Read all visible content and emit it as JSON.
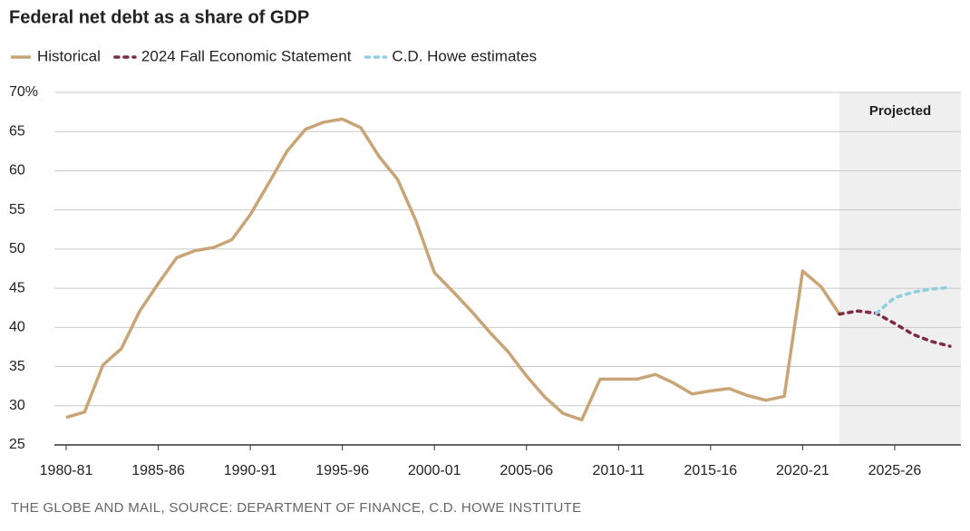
{
  "chart_data": {
    "type": "line",
    "title": "Federal net debt as a share of GDP",
    "source": "THE GLOBE AND MAIL, SOURCE: DEPARTMENT OF FINANCE, C.D. HOWE INSTITUTE",
    "shaded_label": "Projected",
    "categories": [
      "1980-81",
      null,
      null,
      null,
      null,
      "1985-86",
      null,
      null,
      null,
      null,
      "1990-91",
      null,
      null,
      null,
      null,
      "1995-96",
      null,
      null,
      null,
      null,
      "2000-01",
      null,
      null,
      null,
      null,
      "2005-06",
      null,
      null,
      null,
      null,
      "2010-11",
      null,
      null,
      null,
      null,
      "2015-16",
      null,
      null,
      null,
      null,
      "2020-21",
      null,
      null,
      null,
      null,
      "2025-26",
      null,
      null,
      null
    ],
    "series": [
      {
        "name": "Historical",
        "color": "#c9a477",
        "dash": "solid",
        "values": [
          28.5,
          29.2,
          35.2,
          37.3,
          42.1,
          45.6,
          48.9,
          49.8,
          50.2,
          51.2,
          54.4,
          58.4,
          62.5,
          65.3,
          66.2,
          66.6,
          65.5,
          61.8,
          58.9,
          53.6,
          47.0,
          44.6,
          42.1,
          39.4,
          36.9,
          33.8,
          31.1,
          29.0,
          28.2,
          33.4,
          33.4,
          33.4,
          34.0,
          32.9,
          31.5,
          31.9,
          32.2,
          31.3,
          30.7,
          31.2,
          47.2,
          45.2,
          41.7,
          null,
          null,
          null,
          null,
          null,
          null
        ]
      },
      {
        "name": "2024 Fall Economic Statement",
        "color": "#7d2a45",
        "dash": "dotted",
        "values": [
          null,
          null,
          null,
          null,
          null,
          null,
          null,
          null,
          null,
          null,
          null,
          null,
          null,
          null,
          null,
          null,
          null,
          null,
          null,
          null,
          null,
          null,
          null,
          null,
          null,
          null,
          null,
          null,
          null,
          null,
          null,
          null,
          null,
          null,
          null,
          null,
          null,
          null,
          null,
          null,
          null,
          null,
          41.7,
          42.1,
          41.8,
          40.5,
          39.1,
          38.2,
          37.6
        ]
      },
      {
        "name": "C.D. Howe estimates",
        "color": "#8fd0dc",
        "dash": "dotted",
        "values": [
          null,
          null,
          null,
          null,
          null,
          null,
          null,
          null,
          null,
          null,
          null,
          null,
          null,
          null,
          null,
          null,
          null,
          null,
          null,
          null,
          null,
          null,
          null,
          null,
          null,
          null,
          null,
          null,
          null,
          null,
          null,
          null,
          null,
          null,
          null,
          null,
          null,
          null,
          null,
          null,
          null,
          null,
          null,
          null,
          41.8,
          43.8,
          44.5,
          44.9,
          45.1
        ]
      }
    ],
    "ylim": [
      25,
      70
    ],
    "yticks": [
      25,
      30,
      35,
      40,
      45,
      50,
      55,
      60,
      65,
      {
        "value": 70,
        "label": "70%"
      }
    ],
    "grid": true
  }
}
